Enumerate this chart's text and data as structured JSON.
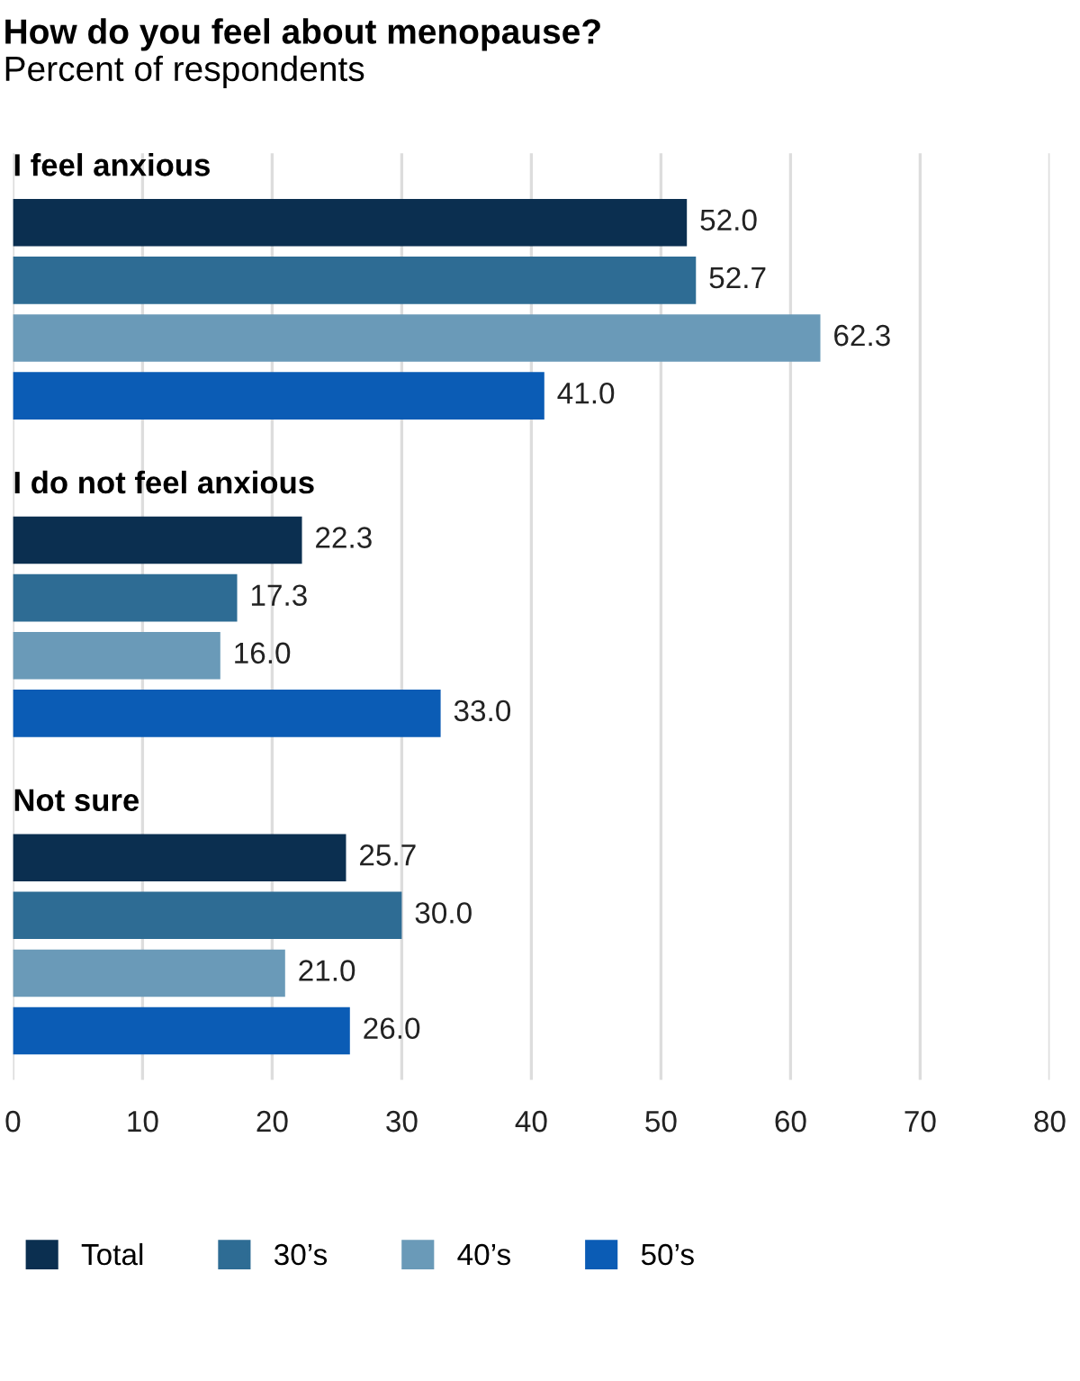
{
  "chart_data": {
    "type": "bar",
    "orientation": "horizontal",
    "title": "How do you feel about menopause?",
    "subtitle": "Percent of respondents",
    "categories": [
      "I feel anxious",
      "I do not feel anxious",
      "Not sure"
    ],
    "series": [
      {
        "name": "Total",
        "color": "#0b2f50",
        "values": [
          52.0,
          22.3,
          25.7
        ],
        "value_labels": [
          "52.0",
          "22.3",
          "25.7"
        ]
      },
      {
        "name": "30’s",
        "color": "#2e6c94",
        "values": [
          52.7,
          17.3,
          30.0
        ],
        "value_labels": [
          "52.7",
          "17.3",
          "30.0"
        ]
      },
      {
        "name": "40’s",
        "color": "#6a9ab8",
        "values": [
          62.3,
          16.0,
          21.0
        ],
        "value_labels": [
          "62.3",
          "16.0",
          "21.0"
        ]
      },
      {
        "name": "50’s",
        "color": "#0b5cb5",
        "values": [
          41.0,
          33.0,
          26.0
        ],
        "value_labels": [
          "41.0",
          "33.0",
          "26.0"
        ]
      }
    ],
    "xlim": [
      0,
      80
    ],
    "xticks": [
      0,
      10,
      20,
      30,
      40,
      50,
      60,
      70,
      80
    ],
    "grid": "x",
    "legend": "bottom"
  }
}
